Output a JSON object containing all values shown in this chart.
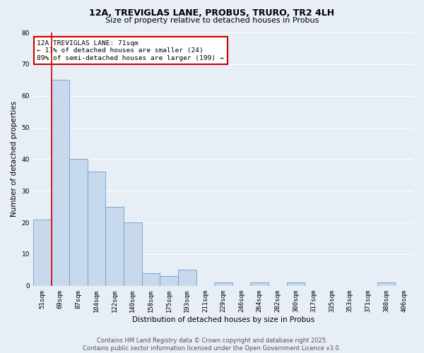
{
  "title": "12A, TREVIGLAS LANE, PROBUS, TRURO, TR2 4LH",
  "subtitle": "Size of property relative to detached houses in Probus",
  "xlabel": "Distribution of detached houses by size in Probus",
  "ylabel": "Number of detached properties",
  "categories": [
    "51sqm",
    "69sqm",
    "87sqm",
    "104sqm",
    "122sqm",
    "140sqm",
    "158sqm",
    "175sqm",
    "193sqm",
    "211sqm",
    "229sqm",
    "246sqm",
    "264sqm",
    "282sqm",
    "300sqm",
    "317sqm",
    "335sqm",
    "353sqm",
    "371sqm",
    "388sqm",
    "406sqm"
  ],
  "values": [
    21,
    65,
    40,
    36,
    25,
    20,
    4,
    3,
    5,
    0,
    1,
    0,
    1,
    0,
    1,
    0,
    0,
    0,
    0,
    1,
    0
  ],
  "bar_color": "#c8d9ed",
  "bar_edge_color": "#6aa0cc",
  "vline_color": "#cc0000",
  "vline_index": 1,
  "ylim": [
    0,
    80
  ],
  "yticks": [
    0,
    10,
    20,
    30,
    40,
    50,
    60,
    70,
    80
  ],
  "annotation_line1": "12A TREVIGLAS LANE: 71sqm",
  "annotation_line2": "← 11% of detached houses are smaller (24)",
  "annotation_line3": "89% of semi-detached houses are larger (199) →",
  "annotation_box_color": "#ffffff",
  "annotation_box_edge": "#cc0000",
  "footer_line1": "Contains HM Land Registry data © Crown copyright and database right 2025.",
  "footer_line2": "Contains public sector information licensed under the Open Government Licence v3.0.",
  "bg_color": "#e8eef5",
  "plot_bg_color": "#e8eef5",
  "grid_color": "#ffffff",
  "title_fontsize": 9,
  "subtitle_fontsize": 8,
  "axis_label_fontsize": 7.5,
  "tick_fontsize": 6.5,
  "annotation_fontsize": 6.8,
  "footer_fontsize": 6
}
